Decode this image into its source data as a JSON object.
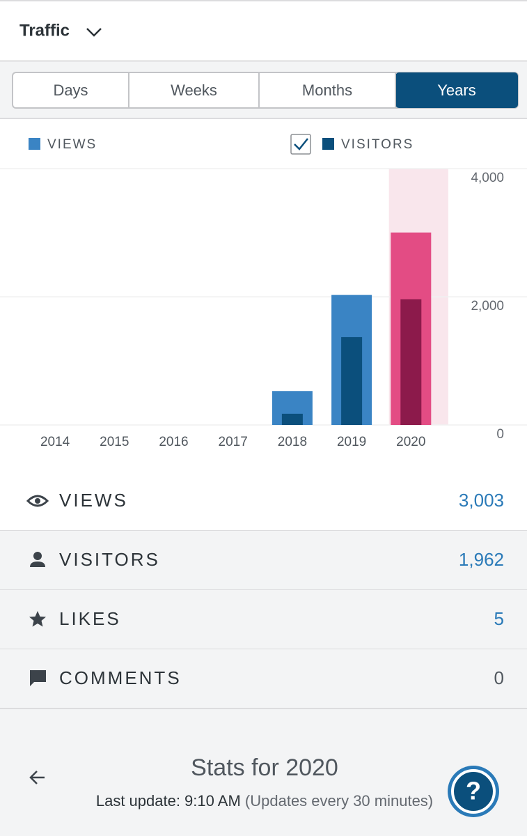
{
  "header": {
    "title": "Traffic"
  },
  "tabs": [
    {
      "label": "Days",
      "active": false
    },
    {
      "label": "Weeks",
      "active": false
    },
    {
      "label": "Months",
      "active": false
    },
    {
      "label": "Years",
      "active": true
    }
  ],
  "chart_data": {
    "type": "bar",
    "categories": [
      "2014",
      "2015",
      "2016",
      "2017",
      "2018",
      "2019",
      "2020"
    ],
    "series": [
      {
        "name": "VIEWS",
        "color": "#3a84c4",
        "values": [
          0,
          0,
          0,
          0,
          530,
          2030,
          3003
        ]
      },
      {
        "name": "VISITORS",
        "color": "#0b4f7c",
        "values": [
          0,
          0,
          0,
          0,
          175,
          1370,
          1962
        ]
      }
    ],
    "ylim": [
      0,
      4000
    ],
    "yticks": [
      0,
      {
        "value": 2000,
        "label": "2,000"
      },
      {
        "value": 4000,
        "label": "4,000"
      }
    ],
    "grid": true,
    "highlight_category": "2020",
    "highlight_colors": [
      "#e34c84",
      "#8c1a4b"
    ],
    "highlight_background": "#f9e6ec"
  },
  "stats": [
    {
      "label": "VIEWS",
      "value": "3,003",
      "color": "#2a7ab8"
    },
    {
      "label": "VISITORS",
      "value": "1,962",
      "color": "#2a7ab8"
    },
    {
      "label": "LIKES",
      "value": "5",
      "color": "#2a7ab8"
    },
    {
      "label": "COMMENTS",
      "value": "0",
      "color": "#50575e"
    }
  ],
  "footer": {
    "title": "Stats for 2020",
    "last_update": "Last update: 9:10 AM",
    "update_note": "(Updates every 30 minutes)",
    "help": "?"
  }
}
